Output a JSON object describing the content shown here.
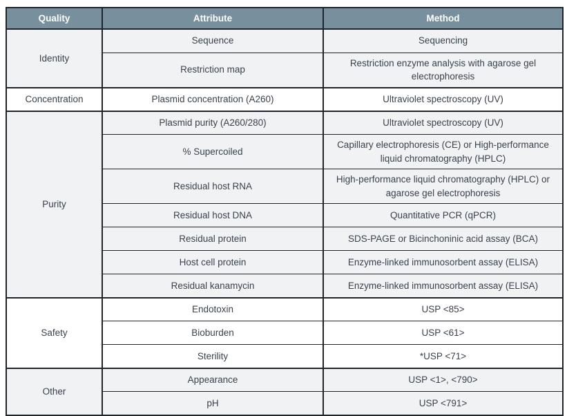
{
  "colors": {
    "header_bg": "#78909e",
    "header_text": "#ffffff",
    "body_text": "#39424c",
    "border": "#1f2429",
    "shaded_row_bg": "#f1f2f4",
    "plain_row_bg": "#ffffff",
    "page_bg": "#ffffff"
  },
  "table": {
    "headers": {
      "quality": "Quality",
      "attribute": "Attribute",
      "method": "Method"
    },
    "groups": [
      {
        "quality": "Identity",
        "shaded": true,
        "rows": [
          {
            "attribute": "Sequence",
            "method": "Sequencing"
          },
          {
            "attribute": "Restriction map",
            "method": "Restriction enzyme analysis with agarose gel electrophoresis"
          }
        ]
      },
      {
        "quality": "Concentration",
        "shaded": false,
        "rows": [
          {
            "attribute": "Plasmid concentration (A260)",
            "method": "Ultraviolet spectroscopy (UV)"
          }
        ]
      },
      {
        "quality": "Purity",
        "shaded": true,
        "rows": [
          {
            "attribute": "Plasmid purity (A260/280)",
            "method": "Ultraviolet spectroscopy (UV)"
          },
          {
            "attribute": "% Supercoiled",
            "method": "Capillary electrophoresis (CE) or High-performance liquid chromatography (HPLC)"
          },
          {
            "attribute": "Residual host RNA",
            "method": "High-performance liquid chromatography (HPLC) or agarose gel electrophoresis"
          },
          {
            "attribute": "Residual host DNA",
            "method": "Quantitative PCR (qPCR)"
          },
          {
            "attribute": "Residual protein",
            "method": "SDS-PAGE or Bicinchoninic acid assay (BCA)"
          },
          {
            "attribute": "Host cell protein",
            "method": "Enzyme-linked immunosorbent assay (ELISA)"
          },
          {
            "attribute": "Residual kanamycin",
            "method": "Enzyme-linked immunosorbent assay (ELISA)"
          }
        ]
      },
      {
        "quality": "Safety",
        "shaded": false,
        "rows": [
          {
            "attribute": "Endotoxin",
            "method": "USP <85>"
          },
          {
            "attribute": "Bioburden",
            "method": "USP <61>"
          },
          {
            "attribute": "Sterility",
            "method": "*USP <71>"
          }
        ]
      },
      {
        "quality": "Other",
        "shaded": true,
        "rows": [
          {
            "attribute": "Appearance",
            "method": "USP <1>, <790>"
          },
          {
            "attribute": "pH",
            "method": "USP <791>"
          }
        ]
      }
    ]
  }
}
